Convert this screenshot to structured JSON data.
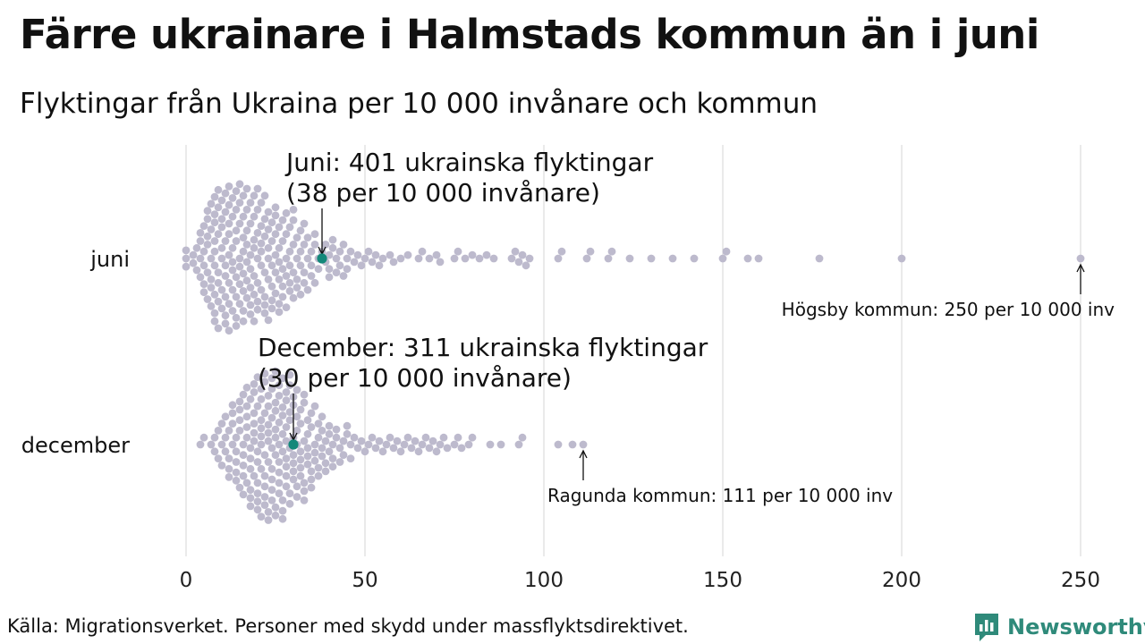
{
  "title": "Färre ukrainare i Halmstads kommun än i juni",
  "subtitle": "Flyktingar från Ukraina per 10 000 invånare och kommun",
  "source": "Källa: Migrationsverket. Personer med skydd under massflyktsdirektivet.",
  "brand": "Newsworthy",
  "chart_data": {
    "type": "scatter",
    "x_range": [
      0,
      250
    ],
    "x_ticks": [
      0,
      50,
      100,
      150,
      200,
      250
    ],
    "grid": true,
    "colors": {
      "dot": "#bdbacd",
      "highlight": "#13887a",
      "grid": "#d4d4d4"
    },
    "series": [
      {
        "name": "juni",
        "highlight": {
          "value": 38,
          "label_lines": [
            "Juni: 401 ukrainska flyktingar",
            "(38 per 10 000 invånare)"
          ]
        },
        "max_annotation": {
          "value": 250,
          "label": "Högsby kommun: 250 per 10 000 inv"
        },
        "values": [
          0,
          0,
          0,
          2,
          2,
          3,
          3,
          4,
          4,
          4,
          4,
          5,
          5,
          5,
          5,
          5,
          6,
          6,
          6,
          6,
          6,
          6,
          7,
          7,
          7,
          7,
          7,
          7,
          8,
          8,
          8,
          8,
          8,
          8,
          8,
          8,
          8,
          9,
          9,
          9,
          9,
          9,
          9,
          9,
          10,
          10,
          10,
          10,
          10,
          10,
          10,
          11,
          11,
          11,
          11,
          11,
          11,
          11,
          11,
          12,
          12,
          12,
          12,
          12,
          12,
          12,
          12,
          13,
          13,
          13,
          13,
          13,
          13,
          13,
          14,
          14,
          14,
          14,
          14,
          14,
          14,
          14,
          15,
          15,
          15,
          15,
          15,
          15,
          15,
          16,
          16,
          16,
          16,
          16,
          16,
          16,
          16,
          17,
          17,
          17,
          17,
          17,
          17,
          17,
          18,
          18,
          18,
          18,
          18,
          18,
          18,
          19,
          19,
          19,
          19,
          19,
          19,
          19,
          20,
          20,
          20,
          20,
          20,
          20,
          20,
          21,
          21,
          21,
          21,
          21,
          21,
          22,
          22,
          22,
          22,
          22,
          22,
          22,
          23,
          23,
          23,
          23,
          23,
          23,
          24,
          24,
          24,
          24,
          24,
          24,
          25,
          25,
          25,
          25,
          25,
          25,
          26,
          26,
          26,
          26,
          26,
          26,
          27,
          27,
          27,
          27,
          27,
          28,
          28,
          28,
          28,
          28,
          29,
          29,
          29,
          29,
          29,
          30,
          30,
          30,
          30,
          30,
          31,
          31,
          31,
          31,
          32,
          32,
          32,
          32,
          33,
          33,
          33,
          33,
          34,
          34,
          34,
          35,
          35,
          35,
          36,
          36,
          36,
          37,
          37,
          38,
          39,
          39,
          40,
          40,
          40,
          41,
          41,
          42,
          42,
          43,
          43,
          44,
          44,
          45,
          45,
          46,
          47,
          48,
          49,
          50,
          51,
          52,
          53,
          54,
          55,
          57,
          58,
          60,
          62,
          65,
          66,
          68,
          70,
          71,
          75,
          76,
          78,
          80,
          82,
          84,
          86,
          91,
          92,
          93,
          94,
          95,
          96,
          104,
          105,
          112,
          113,
          118,
          119,
          124,
          130,
          136,
          142,
          150,
          151,
          157,
          160,
          177,
          200,
          250
        ]
      },
      {
        "name": "december",
        "highlight": {
          "value": 30,
          "label_lines": [
            "December: 311 ukrainska flyktingar",
            "(30 per 10 000 invånare)"
          ]
        },
        "max_annotation": {
          "value": 111,
          "label": "Ragunda kommun: 111 per 10 000 inv"
        },
        "values": [
          4,
          5,
          7,
          8,
          8,
          9,
          9,
          10,
          10,
          10,
          11,
          11,
          11,
          12,
          12,
          12,
          12,
          13,
          13,
          13,
          13,
          14,
          14,
          14,
          14,
          14,
          15,
          15,
          15,
          15,
          15,
          16,
          16,
          16,
          16,
          16,
          16,
          17,
          17,
          17,
          17,
          17,
          17,
          18,
          18,
          18,
          18,
          18,
          18,
          18,
          19,
          19,
          19,
          19,
          19,
          19,
          19,
          20,
          20,
          20,
          20,
          20,
          20,
          20,
          20,
          21,
          21,
          21,
          21,
          21,
          21,
          21,
          21,
          22,
          22,
          22,
          22,
          22,
          22,
          22,
          22,
          23,
          23,
          23,
          23,
          23,
          23,
          23,
          23,
          24,
          24,
          24,
          24,
          24,
          24,
          24,
          24,
          25,
          25,
          25,
          25,
          25,
          25,
          25,
          25,
          26,
          26,
          26,
          26,
          26,
          26,
          26,
          26,
          27,
          27,
          27,
          27,
          27,
          27,
          27,
          27,
          28,
          28,
          28,
          28,
          28,
          28,
          28,
          28,
          29,
          29,
          29,
          29,
          29,
          29,
          29,
          30,
          30,
          30,
          30,
          30,
          30,
          30,
          31,
          31,
          31,
          31,
          31,
          31,
          32,
          32,
          32,
          32,
          32,
          32,
          33,
          33,
          33,
          33,
          33,
          33,
          34,
          34,
          34,
          34,
          34,
          35,
          35,
          35,
          35,
          35,
          36,
          36,
          36,
          36,
          37,
          37,
          37,
          37,
          38,
          38,
          38,
          38,
          39,
          39,
          39,
          40,
          40,
          40,
          41,
          41,
          41,
          42,
          42,
          43,
          43,
          44,
          44,
          45,
          45,
          46,
          46,
          47,
          48,
          49,
          50,
          51,
          52,
          53,
          54,
          55,
          56,
          57,
          58,
          59,
          60,
          61,
          62,
          63,
          64,
          65,
          66,
          67,
          68,
          69,
          70,
          71,
          72,
          73,
          75,
          76,
          77,
          79,
          80,
          85,
          88,
          93,
          94,
          104,
          108,
          111
        ]
      }
    ]
  }
}
